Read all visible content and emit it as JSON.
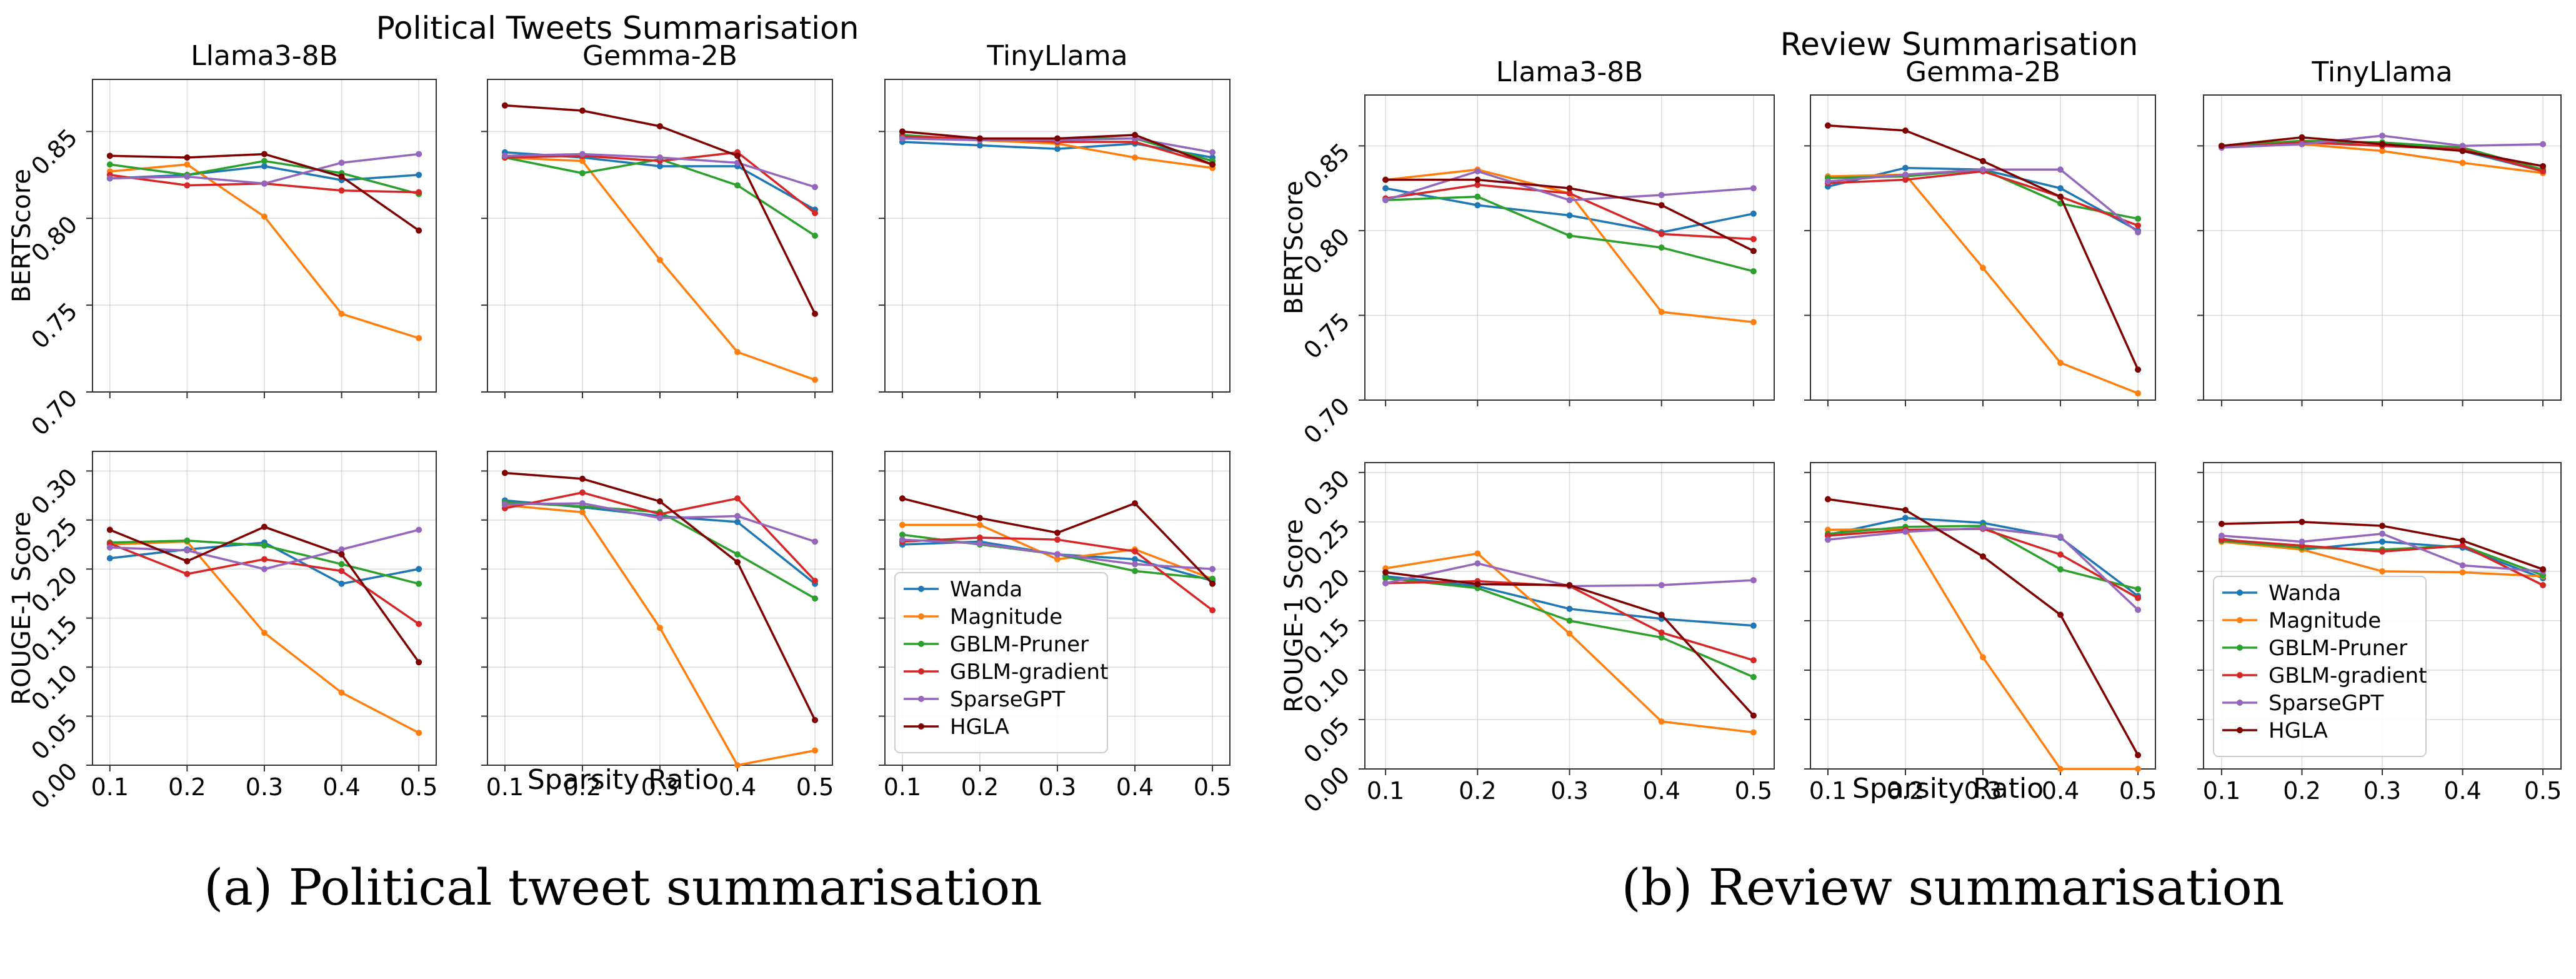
{
  "series_colors": {
    "Wanda": "#1f77b4",
    "Magnitude": "#ff7f0e",
    "GBLM-Pruner": "#2ca02c",
    "GBLM-gradient": "#d62728",
    "SparseGPT": "#9467bd",
    "HGLA": "#7f0000"
  },
  "legend_labels": [
    "Wanda",
    "Magnitude",
    "GBLM-Pruner",
    "GBLM-gradient",
    "SparseGPT",
    "HGLA"
  ],
  "figures": [
    {
      "title": "Political Tweets Summarisation",
      "caption": "(a) Political tweet summarisation",
      "xlabel": "Sparsity Ratio",
      "model_titles": [
        "Llama3-8B",
        "Gemma-2B",
        "TinyLlama"
      ],
      "ylabels": [
        "BERTScore",
        "ROUGE-1 Score"
      ]
    },
    {
      "title": "Review Summarisation",
      "caption": "(b) Review summarisation",
      "xlabel": "Sparsity Ratio",
      "model_titles": [
        "Llama3-8B",
        "Gemma-2B",
        "TinyLlama"
      ],
      "ylabels": [
        "BERTScore",
        "ROUGE-1 Score"
      ]
    }
  ],
  "chart_data": [
    {
      "type": "line",
      "figure": "Political Tweets Summarisation",
      "title": "Llama3-8B",
      "xlabel": "",
      "ylabel": "BERTScore",
      "x": [
        0.1,
        0.2,
        0.3,
        0.4,
        0.5
      ],
      "ylim": [
        0.7,
        0.88
      ],
      "yticks": [
        "0.70",
        "0.75",
        "0.80",
        "0.85"
      ],
      "xticks": [],
      "series": [
        {
          "name": "Wanda",
          "values": [
            0.823,
            0.825,
            0.83,
            0.822,
            0.825
          ]
        },
        {
          "name": "Magnitude",
          "values": [
            0.827,
            0.831,
            0.801,
            0.745,
            0.731
          ]
        },
        {
          "name": "GBLM-Pruner",
          "values": [
            0.831,
            0.825,
            0.833,
            0.826,
            0.814
          ]
        },
        {
          "name": "GBLM-gradient",
          "values": [
            0.825,
            0.819,
            0.82,
            0.816,
            0.815
          ]
        },
        {
          "name": "SparseGPT",
          "values": [
            0.823,
            0.824,
            0.82,
            0.832,
            0.837
          ]
        },
        {
          "name": "HGLA",
          "values": [
            0.836,
            0.835,
            0.837,
            0.824,
            0.793
          ]
        }
      ]
    },
    {
      "type": "line",
      "figure": "Political Tweets Summarisation",
      "title": "Gemma-2B",
      "xlabel": "",
      "ylabel": "",
      "x": [
        0.1,
        0.2,
        0.3,
        0.4,
        0.5
      ],
      "ylim": [
        0.7,
        0.88
      ],
      "yticks": [],
      "xticks": [],
      "series": [
        {
          "name": "Wanda",
          "values": [
            0.838,
            0.835,
            0.83,
            0.83,
            0.805
          ]
        },
        {
          "name": "Magnitude",
          "values": [
            0.835,
            0.833,
            0.776,
            0.723,
            0.707
          ]
        },
        {
          "name": "GBLM-Pruner",
          "values": [
            0.835,
            0.826,
            0.834,
            0.819,
            0.79
          ]
        },
        {
          "name": "GBLM-gradient",
          "values": [
            0.835,
            0.836,
            0.833,
            0.838,
            0.803
          ]
        },
        {
          "name": "SparseGPT",
          "values": [
            0.836,
            0.837,
            0.835,
            0.832,
            0.818
          ]
        },
        {
          "name": "HGLA",
          "values": [
            0.865,
            0.862,
            0.853,
            0.836,
            0.745
          ]
        }
      ]
    },
    {
      "type": "line",
      "figure": "Political Tweets Summarisation",
      "title": "TinyLlama",
      "xlabel": "",
      "ylabel": "",
      "x": [
        0.1,
        0.2,
        0.3,
        0.4,
        0.5
      ],
      "ylim": [
        0.7,
        0.88
      ],
      "yticks": [],
      "xticks": [],
      "series": [
        {
          "name": "Wanda",
          "values": [
            0.844,
            0.842,
            0.84,
            0.843,
            0.835
          ]
        },
        {
          "name": "Magnitude",
          "values": [
            0.846,
            0.845,
            0.843,
            0.835,
            0.829
          ]
        },
        {
          "name": "GBLM-Pruner",
          "values": [
            0.848,
            0.845,
            0.846,
            0.846,
            0.833
          ]
        },
        {
          "name": "GBLM-gradient",
          "values": [
            0.847,
            0.846,
            0.844,
            0.844,
            0.831
          ]
        },
        {
          "name": "SparseGPT",
          "values": [
            0.846,
            0.845,
            0.845,
            0.846,
            0.838
          ]
        },
        {
          "name": "HGLA",
          "values": [
            0.85,
            0.846,
            0.846,
            0.848,
            0.831
          ]
        }
      ]
    },
    {
      "type": "line",
      "figure": "Political Tweets Summarisation",
      "title": "",
      "xlabel": "Sparsity Ratio",
      "ylabel": "ROUGE-1 Score",
      "x": [
        0.1,
        0.2,
        0.3,
        0.4,
        0.5
      ],
      "ylim": [
        0.0,
        0.32
      ],
      "yticks": [
        "0.00",
        "0.05",
        "0.10",
        "0.15",
        "0.20",
        "0.25",
        "0.30"
      ],
      "xticks": [
        "0.1",
        "0.2",
        "0.3",
        "0.4",
        "0.5"
      ],
      "series": [
        {
          "name": "Wanda",
          "values": [
            0.211,
            0.22,
            0.227,
            0.185,
            0.2
          ]
        },
        {
          "name": "Magnitude",
          "values": [
            0.225,
            0.228,
            0.135,
            0.074,
            0.033
          ]
        },
        {
          "name": "GBLM-Pruner",
          "values": [
            0.227,
            0.229,
            0.224,
            0.205,
            0.185
          ]
        },
        {
          "name": "GBLM-gradient",
          "values": [
            0.226,
            0.195,
            0.21,
            0.198,
            0.144
          ]
        },
        {
          "name": "SparseGPT",
          "values": [
            0.222,
            0.219,
            0.2,
            0.22,
            0.24
          ]
        },
        {
          "name": "HGLA",
          "values": [
            0.24,
            0.208,
            0.243,
            0.215,
            0.105
          ]
        }
      ]
    },
    {
      "type": "line",
      "figure": "Political Tweets Summarisation",
      "title": "",
      "xlabel": "",
      "ylabel": "",
      "x": [
        0.1,
        0.2,
        0.3,
        0.4,
        0.5
      ],
      "ylim": [
        0.0,
        0.32
      ],
      "yticks": [],
      "xticks": [
        "0.1",
        "0.2",
        "0.3",
        "0.4",
        "0.5"
      ],
      "series": [
        {
          "name": "Wanda",
          "values": [
            0.27,
            0.263,
            0.254,
            0.248,
            0.185
          ]
        },
        {
          "name": "Magnitude",
          "values": [
            0.265,
            0.258,
            0.14,
            0.0,
            0.015
          ]
        },
        {
          "name": "GBLM-Pruner",
          "values": [
            0.268,
            0.264,
            0.258,
            0.215,
            0.17
          ]
        },
        {
          "name": "GBLM-gradient",
          "values": [
            0.262,
            0.278,
            0.256,
            0.272,
            0.188
          ]
        },
        {
          "name": "SparseGPT",
          "values": [
            0.266,
            0.267,
            0.252,
            0.254,
            0.228
          ]
        },
        {
          "name": "HGLA",
          "values": [
            0.298,
            0.292,
            0.269,
            0.207,
            0.046
          ]
        }
      ]
    },
    {
      "type": "line",
      "figure": "Political Tweets Summarisation",
      "title": "",
      "xlabel": "",
      "ylabel": "",
      "x": [
        0.1,
        0.2,
        0.3,
        0.4,
        0.5
      ],
      "ylim": [
        0.0,
        0.32
      ],
      "yticks": [],
      "xticks": [
        "0.1",
        "0.2",
        "0.3",
        "0.4",
        "0.5"
      ],
      "legend": "lower-left",
      "series": [
        {
          "name": "Wanda",
          "values": [
            0.225,
            0.228,
            0.215,
            0.21,
            0.188
          ]
        },
        {
          "name": "Magnitude",
          "values": [
            0.245,
            0.245,
            0.21,
            0.22,
            0.19
          ]
        },
        {
          "name": "GBLM-Pruner",
          "values": [
            0.235,
            0.225,
            0.215,
            0.198,
            0.19
          ]
        },
        {
          "name": "GBLM-gradient",
          "values": [
            0.228,
            0.232,
            0.23,
            0.218,
            0.158
          ]
        },
        {
          "name": "SparseGPT",
          "values": [
            0.23,
            0.226,
            0.215,
            0.205,
            0.2
          ]
        },
        {
          "name": "HGLA",
          "values": [
            0.272,
            0.252,
            0.237,
            0.267,
            0.185
          ]
        }
      ]
    },
    {
      "type": "line",
      "figure": "Review Summarisation",
      "title": "Llama3-8B",
      "xlabel": "",
      "ylabel": "BERTScore",
      "x": [
        0.1,
        0.2,
        0.3,
        0.4,
        0.5
      ],
      "ylim": [
        0.7,
        0.88
      ],
      "yticks": [
        "0.70",
        "0.75",
        "0.80",
        "0.85"
      ],
      "xticks": [],
      "series": [
        {
          "name": "Wanda",
          "values": [
            0.825,
            0.815,
            0.809,
            0.799,
            0.81
          ]
        },
        {
          "name": "Magnitude",
          "values": [
            0.83,
            0.836,
            0.822,
            0.752,
            0.746
          ]
        },
        {
          "name": "GBLM-Pruner",
          "values": [
            0.818,
            0.82,
            0.797,
            0.79,
            0.776
          ]
        },
        {
          "name": "GBLM-gradient",
          "values": [
            0.819,
            0.827,
            0.822,
            0.798,
            0.795
          ]
        },
        {
          "name": "SparseGPT",
          "values": [
            0.818,
            0.835,
            0.818,
            0.821,
            0.825
          ]
        },
        {
          "name": "HGLA",
          "values": [
            0.83,
            0.83,
            0.825,
            0.815,
            0.788
          ]
        }
      ]
    },
    {
      "type": "line",
      "figure": "Review Summarisation",
      "title": "Gemma-2B",
      "xlabel": "",
      "ylabel": "",
      "x": [
        0.1,
        0.2,
        0.3,
        0.4,
        0.5
      ],
      "ylim": [
        0.7,
        0.88
      ],
      "yticks": [],
      "xticks": [],
      "series": [
        {
          "name": "Wanda",
          "values": [
            0.826,
            0.837,
            0.836,
            0.825,
            0.8
          ]
        },
        {
          "name": "Magnitude",
          "values": [
            0.832,
            0.833,
            0.778,
            0.722,
            0.704
          ]
        },
        {
          "name": "GBLM-Pruner",
          "values": [
            0.831,
            0.832,
            0.836,
            0.816,
            0.807
          ]
        },
        {
          "name": "GBLM-gradient",
          "values": [
            0.828,
            0.83,
            0.835,
            0.82,
            0.803
          ]
        },
        {
          "name": "SparseGPT",
          "values": [
            0.829,
            0.833,
            0.836,
            0.836,
            0.799
          ]
        },
        {
          "name": "HGLA",
          "values": [
            0.862,
            0.859,
            0.841,
            0.82,
            0.718
          ]
        }
      ]
    },
    {
      "type": "line",
      "figure": "Review Summarisation",
      "title": "TinyLlama",
      "xlabel": "",
      "ylabel": "",
      "x": [
        0.1,
        0.2,
        0.3,
        0.4,
        0.5
      ],
      "ylim": [
        0.7,
        0.88
      ],
      "yticks": [],
      "xticks": [],
      "series": [
        {
          "name": "Wanda",
          "values": [
            0.85,
            0.852,
            0.852,
            0.847,
            0.835
          ]
        },
        {
          "name": "Magnitude",
          "values": [
            0.849,
            0.851,
            0.847,
            0.84,
            0.834
          ]
        },
        {
          "name": "GBLM-Pruner",
          "values": [
            0.85,
            0.853,
            0.852,
            0.849,
            0.836
          ]
        },
        {
          "name": "GBLM-gradient",
          "values": [
            0.849,
            0.852,
            0.85,
            0.848,
            0.835
          ]
        },
        {
          "name": "SparseGPT",
          "values": [
            0.849,
            0.851,
            0.856,
            0.85,
            0.851
          ]
        },
        {
          "name": "HGLA",
          "values": [
            0.85,
            0.855,
            0.851,
            0.847,
            0.838
          ]
        }
      ]
    },
    {
      "type": "line",
      "figure": "Review Summarisation",
      "title": "",
      "xlabel": "Sparsity Ratio",
      "ylabel": "ROUGE-1 Score",
      "x": [
        0.1,
        0.2,
        0.3,
        0.4,
        0.5
      ],
      "ylim": [
        0.0,
        0.31
      ],
      "yticks": [
        "0.00",
        "0.05",
        "0.10",
        "0.15",
        "0.20",
        "0.25",
        "0.30"
      ],
      "xticks": [
        "0.1",
        "0.2",
        "0.3",
        "0.4",
        "0.5"
      ],
      "series": [
        {
          "name": "Wanda",
          "values": [
            0.195,
            0.185,
            0.162,
            0.152,
            0.145
          ]
        },
        {
          "name": "Magnitude",
          "values": [
            0.203,
            0.218,
            0.137,
            0.048,
            0.037
          ]
        },
        {
          "name": "GBLM-Pruner",
          "values": [
            0.193,
            0.183,
            0.15,
            0.133,
            0.093
          ]
        },
        {
          "name": "GBLM-gradient",
          "values": [
            0.188,
            0.19,
            0.185,
            0.138,
            0.11
          ]
        },
        {
          "name": "SparseGPT",
          "values": [
            0.188,
            0.208,
            0.185,
            0.186,
            0.191
          ]
        },
        {
          "name": "HGLA",
          "values": [
            0.199,
            0.187,
            0.186,
            0.156,
            0.054
          ]
        }
      ]
    },
    {
      "type": "line",
      "figure": "Review Summarisation",
      "title": "",
      "xlabel": "",
      "ylabel": "",
      "x": [
        0.1,
        0.2,
        0.3,
        0.4,
        0.5
      ],
      "ylim": [
        0.0,
        0.31
      ],
      "yticks": [],
      "xticks": [
        "0.1",
        "0.2",
        "0.3",
        "0.4",
        "0.5"
      ],
      "series": [
        {
          "name": "Wanda",
          "values": [
            0.237,
            0.254,
            0.249,
            0.234,
            0.175
          ]
        },
        {
          "name": "Magnitude",
          "values": [
            0.242,
            0.243,
            0.113,
            0.0,
            0.0
          ]
        },
        {
          "name": "GBLM-Pruner",
          "values": [
            0.238,
            0.245,
            0.246,
            0.202,
            0.182
          ]
        },
        {
          "name": "GBLM-gradient",
          "values": [
            0.236,
            0.242,
            0.243,
            0.217,
            0.173
          ]
        },
        {
          "name": "SparseGPT",
          "values": [
            0.232,
            0.24,
            0.244,
            0.235,
            0.161
          ]
        },
        {
          "name": "HGLA",
          "values": [
            0.273,
            0.262,
            0.215,
            0.156,
            0.014
          ]
        }
      ]
    },
    {
      "type": "line",
      "figure": "Review Summarisation",
      "title": "",
      "xlabel": "",
      "ylabel": "",
      "x": [
        0.1,
        0.2,
        0.3,
        0.4,
        0.5
      ],
      "ylim": [
        0.0,
        0.31
      ],
      "yticks": [],
      "xticks": [
        "0.1",
        "0.2",
        "0.3",
        "0.4",
        "0.5"
      ],
      "legend": "lower-left",
      "series": [
        {
          "name": "Wanda",
          "values": [
            0.233,
            0.222,
            0.23,
            0.224,
            0.193
          ]
        },
        {
          "name": "Magnitude",
          "values": [
            0.23,
            0.222,
            0.2,
            0.199,
            0.195
          ]
        },
        {
          "name": "GBLM-Pruner",
          "values": [
            0.231,
            0.224,
            0.222,
            0.226,
            0.196
          ]
        },
        {
          "name": "GBLM-gradient",
          "values": [
            0.232,
            0.226,
            0.22,
            0.226,
            0.186
          ]
        },
        {
          "name": "SparseGPT",
          "values": [
            0.236,
            0.23,
            0.238,
            0.206,
            0.2
          ]
        },
        {
          "name": "HGLA",
          "values": [
            0.248,
            0.25,
            0.246,
            0.231,
            0.202
          ]
        }
      ]
    }
  ]
}
